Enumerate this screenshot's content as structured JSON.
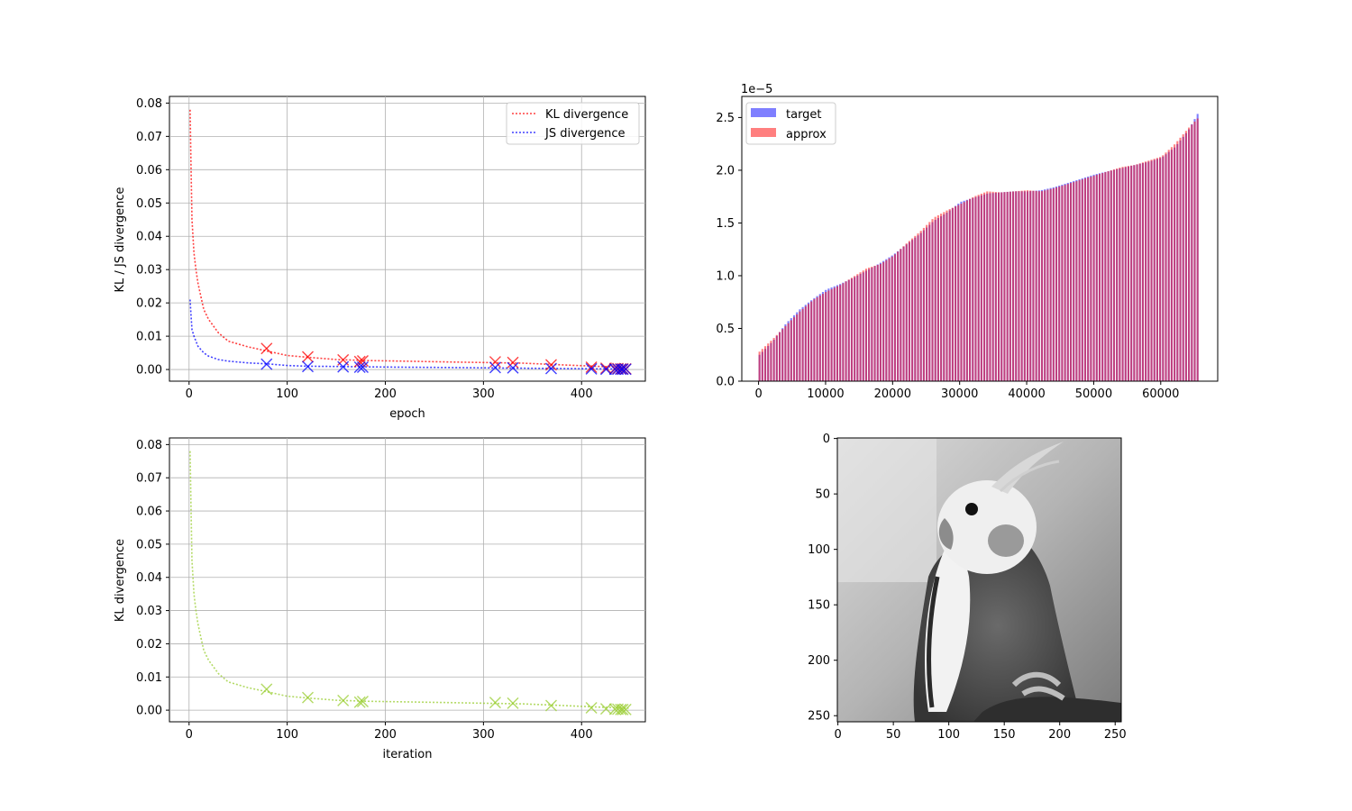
{
  "chart_data": [
    {
      "type": "line",
      "xlabel": "epoch",
      "ylabel": "KL / JS divergence",
      "xlim": [
        -20,
        465
      ],
      "ylim": [
        -0.0035,
        0.082
      ],
      "xticks": [
        0,
        100,
        200,
        300,
        400
      ],
      "yticks": [
        0.0,
        0.01,
        0.02,
        0.03,
        0.04,
        0.05,
        0.06,
        0.07,
        0.08
      ],
      "grid": true,
      "legend_position": "top-right",
      "series": [
        {
          "name": "KL divergence",
          "color": "#ff0000",
          "line_style": "dotted",
          "x": [
            1,
            2,
            3,
            4,
            5,
            7,
            9,
            12,
            15,
            20,
            30,
            40,
            60,
            80,
            100,
            120,
            150,
            180,
            220,
            260,
            300,
            340,
            380,
            420,
            448
          ],
          "y": [
            0.078,
            0.06,
            0.045,
            0.04,
            0.035,
            0.03,
            0.026,
            0.022,
            0.018,
            0.015,
            0.011,
            0.0085,
            0.0068,
            0.0055,
            0.0042,
            0.0037,
            0.003,
            0.0027,
            0.0025,
            0.0023,
            0.0021,
            0.0019,
            0.0014,
            0.0009,
            0.0006
          ]
        },
        {
          "name": "JS divergence",
          "color": "#0000ff",
          "line_style": "dotted",
          "x": [
            1,
            2,
            3,
            4,
            5,
            7,
            9,
            12,
            15,
            20,
            30,
            40,
            60,
            80,
            100,
            120,
            150,
            180,
            220,
            260,
            300,
            340,
            380,
            420,
            448
          ],
          "y": [
            0.021,
            0.016,
            0.012,
            0.011,
            0.01,
            0.0085,
            0.007,
            0.006,
            0.005,
            0.004,
            0.003,
            0.0025,
            0.002,
            0.0017,
            0.0012,
            0.001,
            0.0009,
            0.0008,
            0.0007,
            0.0006,
            0.0005,
            0.0004,
            0.0003,
            0.0002,
            0.0001
          ]
        }
      ],
      "markers": {
        "x": [
          79,
          121,
          157,
          174,
          177,
          312,
          330,
          369,
          410,
          425,
          434,
          437,
          440,
          442,
          445
        ],
        "kl_y": [
          0.0063,
          0.0038,
          0.0029,
          0.0024,
          0.0026,
          0.0023,
          0.0021,
          0.0014,
          0.0007,
          0.0004,
          0.0003,
          0.0003,
          0.0002,
          0.0002,
          0.0002
        ],
        "js_y": [
          0.0016,
          0.0009,
          0.0008,
          0.0007,
          0.0007,
          0.0006,
          0.0005,
          0.0003,
          0.0002,
          0.0001,
          0.0001,
          0.0001,
          0.0001,
          0.0001,
          0.0001
        ]
      }
    },
    {
      "type": "bar",
      "scale_label": "1e−5",
      "xlim": [
        -2500,
        68500
      ],
      "ylim": [
        0,
        2.7
      ],
      "xticks": [
        0,
        10000,
        20000,
        30000,
        40000,
        50000,
        60000
      ],
      "yticks": [
        0.0,
        0.5,
        1.0,
        1.5,
        2.0,
        2.5
      ],
      "grid": false,
      "legend_position": "top-left",
      "series": [
        {
          "name": "target",
          "color": "#0000ff",
          "alpha": 0.5
        },
        {
          "name": "approx",
          "color": "#ff0000",
          "alpha": 0.5
        }
      ],
      "x": [
        0,
        2000,
        4000,
        6000,
        8000,
        10000,
        12000,
        14000,
        16000,
        18000,
        20000,
        22000,
        24000,
        26000,
        28000,
        30000,
        32000,
        34000,
        36000,
        38000,
        40000,
        42000,
        44000,
        46000,
        48000,
        50000,
        52000,
        54000,
        56000,
        58000,
        60000,
        62000,
        64000,
        65500
      ],
      "target_values": [
        0.25,
        0.38,
        0.55,
        0.68,
        0.78,
        0.87,
        0.92,
        0.98,
        1.05,
        1.12,
        1.2,
        1.3,
        1.4,
        1.52,
        1.6,
        1.7,
        1.74,
        1.78,
        1.79,
        1.8,
        1.8,
        1.81,
        1.84,
        1.88,
        1.92,
        1.96,
        1.99,
        2.02,
        2.05,
        2.08,
        2.12,
        2.22,
        2.38,
        2.55
      ],
      "approx_values": [
        0.28,
        0.4,
        0.53,
        0.66,
        0.77,
        0.85,
        0.91,
        0.99,
        1.07,
        1.11,
        1.19,
        1.31,
        1.42,
        1.55,
        1.62,
        1.68,
        1.75,
        1.8,
        1.79,
        1.8,
        1.81,
        1.8,
        1.83,
        1.87,
        1.91,
        1.95,
        1.99,
        2.03,
        2.05,
        2.09,
        2.13,
        2.25,
        2.4,
        2.5
      ]
    },
    {
      "type": "line",
      "xlabel": "iteration",
      "ylabel": "KL divergence",
      "xlim": [
        -20,
        465
      ],
      "ylim": [
        -0.0035,
        0.082
      ],
      "xticks": [
        0,
        100,
        200,
        300,
        400
      ],
      "yticks": [
        0.0,
        0.01,
        0.02,
        0.03,
        0.04,
        0.05,
        0.06,
        0.07,
        0.08
      ],
      "grid": true,
      "series": [
        {
          "color": "#9acd32",
          "line_style": "dotted",
          "x": [
            1,
            2,
            3,
            4,
            5,
            7,
            9,
            12,
            15,
            20,
            30,
            40,
            60,
            80,
            100,
            120,
            150,
            180,
            220,
            260,
            300,
            340,
            380,
            420,
            448
          ],
          "y": [
            0.078,
            0.06,
            0.045,
            0.04,
            0.035,
            0.03,
            0.026,
            0.022,
            0.018,
            0.015,
            0.011,
            0.0085,
            0.0068,
            0.0055,
            0.0042,
            0.0037,
            0.003,
            0.0027,
            0.0025,
            0.0023,
            0.0021,
            0.0019,
            0.0014,
            0.0009,
            0.0006
          ]
        }
      ],
      "markers": {
        "x": [
          79,
          121,
          157,
          174,
          177,
          312,
          330,
          369,
          410,
          425,
          434,
          437,
          440,
          442,
          445
        ],
        "y": [
          0.0063,
          0.0038,
          0.0029,
          0.0024,
          0.0026,
          0.0023,
          0.0021,
          0.0014,
          0.0007,
          0.0004,
          0.0003,
          0.0003,
          0.0002,
          0.0002,
          0.0002
        ]
      }
    },
    {
      "type": "image",
      "content": "grayscale cockatiel",
      "xticks": [
        0,
        50,
        100,
        150,
        200,
        250
      ],
      "yticks": [
        0,
        50,
        100,
        150,
        200,
        250
      ],
      "extent": [
        -0.5,
        255.5
      ]
    }
  ]
}
